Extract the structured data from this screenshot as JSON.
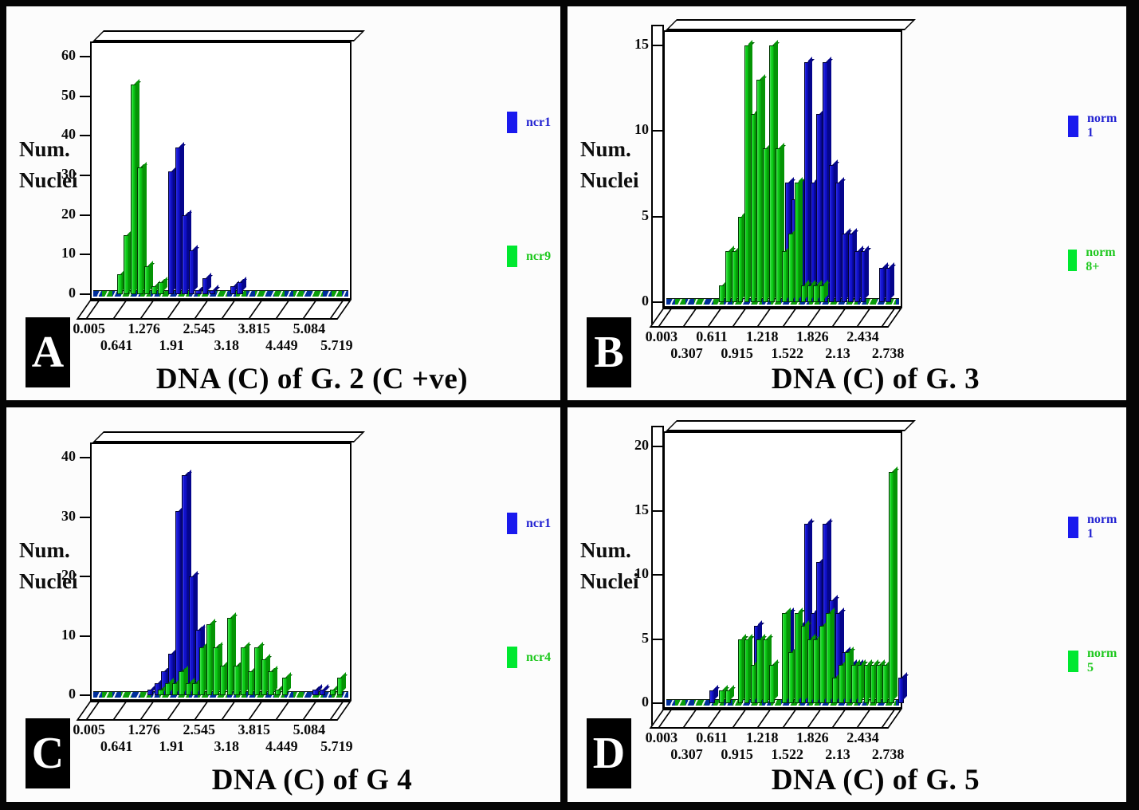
{
  "figure": {
    "colors": {
      "blue_bar": "#1111cc",
      "blue_dark": "#02025e",
      "green_bar": "#0ccc18",
      "green_dark": "#045f04",
      "legend_blue_swatch": "#1a1aee",
      "legend_green_swatch": "#00e830",
      "legend_blue_text": "#2424d2",
      "legend_green_text": "#1fc81f",
      "frame": "#000000",
      "panel_bg": "#ffffff"
    },
    "panels": [
      {
        "letter": "A",
        "title": "DNA (C) of G. 2 (C +ve)",
        "y_axis_title_line1": "Num.",
        "y_axis_title_line2": "Nuclei",
        "has_left_wall": false,
        "legend": [
          {
            "label": "ncr1",
            "series": "blue"
          },
          {
            "label": "ncr9",
            "series": "green"
          }
        ]
      },
      {
        "letter": "B",
        "title": "DNA (C) of G. 3",
        "y_axis_title_line1": "Num.",
        "y_axis_title_line2": "Nuclei",
        "has_left_wall": true,
        "legend": [
          {
            "label": "norm 1",
            "series": "blue"
          },
          {
            "label": "norm 8+",
            "series": "green"
          }
        ]
      },
      {
        "letter": "C",
        "title": "DNA (C) of G 4",
        "y_axis_title_line1": "Num.",
        "y_axis_title_line2": "Nuclei",
        "has_left_wall": false,
        "legend": [
          {
            "label": "ncr1",
            "series": "blue"
          },
          {
            "label": "ncr4",
            "series": "green"
          }
        ]
      },
      {
        "letter": "D",
        "title": "DNA (C) of G. 5",
        "y_axis_title_line1": "Num.",
        "y_axis_title_line2": "Nuclei",
        "has_left_wall": true,
        "legend": [
          {
            "label": "norm 1",
            "series": "blue"
          },
          {
            "label": "norm 5",
            "series": "green"
          }
        ]
      }
    ]
  },
  "chart_data": [
    {
      "type": "bar",
      "panel": "A",
      "title": "DNA (C) of G. 2 (C +ve)",
      "ylabel": "Num. Nuclei",
      "ylim": [
        0,
        60
      ],
      "y_ticks": [
        0,
        10,
        20,
        30,
        40,
        50,
        60
      ],
      "grid": false,
      "legend_position": "right",
      "x_axis": {
        "n_slots": 38,
        "origin": 0.005,
        "slot_width_units": 0.1587,
        "tick_slots": [
          1,
          5,
          9,
          13,
          17,
          21,
          25,
          29,
          33,
          37
        ],
        "tick_labels": [
          "0.005",
          "0.641",
          "1.276",
          "1.91",
          "2.545",
          "3.18",
          "3.815",
          "4.449",
          "5.084",
          "5.719"
        ]
      },
      "point_format": "[slot,count]",
      "series": [
        {
          "name": "ncr1",
          "color": "blue",
          "points": [
            [
              11,
              31
            ],
            [
              12,
              37
            ],
            [
              13,
              20
            ],
            [
              14,
              11
            ],
            [
              15,
              1
            ],
            [
              16,
              4
            ],
            [
              17,
              1
            ],
            [
              20,
              2
            ],
            [
              21,
              3
            ]
          ]
        },
        {
          "name": "ncr9",
          "color": "green",
          "points": [
            [
              4,
              5
            ],
            [
              5,
              15
            ],
            [
              6,
              53
            ],
            [
              7,
              32
            ],
            [
              8,
              7
            ],
            [
              9,
              2
            ],
            [
              10,
              3
            ]
          ]
        }
      ]
    },
    {
      "type": "bar",
      "panel": "B",
      "title": "DNA (C) of G. 3",
      "ylabel": "Num. Nuclei",
      "ylim": [
        0,
        15
      ],
      "y_ticks": [
        0,
        5,
        10,
        15
      ],
      "grid": false,
      "legend_position": "right",
      "x_axis": {
        "n_slots": 38,
        "origin": 0.003,
        "slot_width_units": 0.0761,
        "tick_slots": [
          1,
          5,
          9,
          13,
          17,
          21,
          25,
          29,
          33,
          37
        ],
        "tick_labels": [
          "0.003",
          "0.307",
          "0.611",
          "0.915",
          "1.218",
          "1.522",
          "1.826",
          "2.13",
          "2.434",
          "2.738"
        ]
      },
      "point_format": "[slot,count]",
      "series": [
        {
          "name": "norm 1",
          "color": "blue",
          "points": [
            [
              19,
              7
            ],
            [
              20,
              6
            ],
            [
              21,
              7
            ],
            [
              22,
              14
            ],
            [
              23,
              7
            ],
            [
              24,
              11
            ],
            [
              25,
              14
            ],
            [
              26,
              8
            ],
            [
              27,
              7
            ],
            [
              28,
              4
            ],
            [
              29,
              4
            ],
            [
              30,
              3
            ],
            [
              31,
              3
            ],
            [
              34,
              2
            ],
            [
              35,
              2
            ]
          ]
        },
        {
          "name": "norm 8+",
          "color": "green",
          "points": [
            [
              9,
              1
            ],
            [
              10,
              3
            ],
            [
              11,
              3
            ],
            [
              12,
              5
            ],
            [
              13,
              15
            ],
            [
              14,
              11
            ],
            [
              15,
              13
            ],
            [
              16,
              9
            ],
            [
              17,
              15
            ],
            [
              18,
              9
            ],
            [
              19,
              3
            ],
            [
              20,
              4
            ],
            [
              21,
              7
            ],
            [
              22,
              1
            ],
            [
              23,
              1
            ],
            [
              24,
              1
            ],
            [
              25,
              1
            ]
          ]
        }
      ]
    },
    {
      "type": "bar",
      "panel": "C",
      "title": "DNA (C) of G 4",
      "ylabel": "Num. Nuclei",
      "ylim": [
        0,
        40
      ],
      "y_ticks": [
        0,
        10,
        20,
        30,
        40
      ],
      "grid": false,
      "legend_position": "right",
      "x_axis": {
        "n_slots": 38,
        "origin": 0.005,
        "slot_width_units": 0.1587,
        "tick_slots": [
          1,
          5,
          9,
          13,
          17,
          21,
          25,
          29,
          33,
          37
        ],
        "tick_labels": [
          "0.005",
          "0.641",
          "1.276",
          "1.91",
          "2.545",
          "3.18",
          "3.815",
          "4.449",
          "5.084",
          "5.719"
        ]
      },
      "point_format": "[slot,count]",
      "series": [
        {
          "name": "ncr1",
          "color": "blue",
          "points": [
            [
              8,
              1
            ],
            [
              9,
              2
            ],
            [
              10,
              4
            ],
            [
              11,
              7
            ],
            [
              12,
              31
            ],
            [
              13,
              37
            ],
            [
              14,
              20
            ],
            [
              15,
              11
            ],
            [
              32,
              1
            ],
            [
              33,
              1
            ]
          ]
        },
        {
          "name": "ncr4",
          "color": "green",
          "points": [
            [
              10,
              1
            ],
            [
              11,
              2
            ],
            [
              12,
              2
            ],
            [
              13,
              4
            ],
            [
              14,
              2
            ],
            [
              15,
              2
            ],
            [
              16,
              8
            ],
            [
              17,
              12
            ],
            [
              18,
              8
            ],
            [
              19,
              5
            ],
            [
              20,
              13
            ],
            [
              21,
              5
            ],
            [
              22,
              8
            ],
            [
              23,
              4
            ],
            [
              24,
              8
            ],
            [
              25,
              6
            ],
            [
              26,
              4
            ],
            [
              27,
              1
            ],
            [
              28,
              3
            ],
            [
              35,
              1
            ],
            [
              36,
              3
            ]
          ]
        }
      ]
    },
    {
      "type": "bar",
      "panel": "D",
      "title": "DNA (C) of G. 5",
      "ylabel": "Num. Nuclei",
      "ylim": [
        0,
        20
      ],
      "y_ticks": [
        0,
        5,
        10,
        15,
        20
      ],
      "grid": false,
      "legend_position": "right",
      "x_axis": {
        "n_slots": 38,
        "origin": 0.003,
        "slot_width_units": 0.0761,
        "tick_slots": [
          1,
          5,
          9,
          13,
          17,
          21,
          25,
          29,
          33,
          37
        ],
        "tick_labels": [
          "0.003",
          "0.307",
          "0.611",
          "0.915",
          "1.218",
          "1.522",
          "1.826",
          "2.13",
          "2.434",
          "2.738"
        ]
      },
      "point_format": "[slot,count]",
      "series": [
        {
          "name": "norm 1",
          "color": "blue",
          "points": [
            [
              7,
              1
            ],
            [
              14,
              6
            ],
            [
              19,
              7
            ],
            [
              21,
              6
            ],
            [
              22,
              14
            ],
            [
              23,
              7
            ],
            [
              24,
              11
            ],
            [
              25,
              14
            ],
            [
              26,
              8
            ],
            [
              27,
              7
            ],
            [
              28,
              4
            ],
            [
              29,
              3
            ],
            [
              30,
              3
            ],
            [
              37,
              2
            ]
          ]
        },
        {
          "name": "norm 5",
          "color": "green",
          "points": [
            [
              9,
              1
            ],
            [
              10,
              1
            ],
            [
              12,
              5
            ],
            [
              13,
              5
            ],
            [
              14,
              3
            ],
            [
              15,
              5
            ],
            [
              16,
              5
            ],
            [
              17,
              3
            ],
            [
              19,
              7
            ],
            [
              20,
              4
            ],
            [
              21,
              7
            ],
            [
              22,
              6
            ],
            [
              23,
              5
            ],
            [
              24,
              5
            ],
            [
              25,
              6
            ],
            [
              26,
              7
            ],
            [
              27,
              2
            ],
            [
              28,
              3
            ],
            [
              29,
              4
            ],
            [
              30,
              3
            ],
            [
              31,
              3
            ],
            [
              32,
              3
            ],
            [
              33,
              3
            ],
            [
              34,
              3
            ],
            [
              35,
              3
            ],
            [
              36,
              18
            ]
          ]
        }
      ]
    }
  ]
}
